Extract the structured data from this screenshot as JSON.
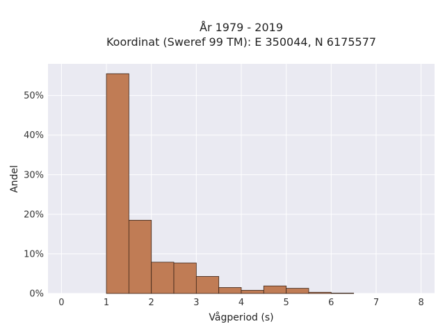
{
  "chart_data": {
    "type": "bar",
    "title_line1": "År 1979 - 2019",
    "title_line2": "Koordinat (Sweref 99 TM): E 350044, N 6175577",
    "xlabel": "Vågperiod (s)",
    "ylabel": "Andel",
    "xlim": [
      -0.3,
      8.3
    ],
    "ylim": [
      0,
      58
    ],
    "x_ticks": [
      0,
      1,
      2,
      3,
      4,
      5,
      6,
      7,
      8
    ],
    "y_ticks": [
      0,
      10,
      20,
      30,
      40,
      50
    ],
    "y_tick_labels": [
      "0%",
      "10%",
      "20%",
      "30%",
      "40%",
      "50%"
    ],
    "bin_width": 0.5,
    "bins": [
      {
        "x0": 1.0,
        "value": 55.5
      },
      {
        "x0": 1.5,
        "value": 18.5
      },
      {
        "x0": 2.0,
        "value": 7.9
      },
      {
        "x0": 2.5,
        "value": 7.7
      },
      {
        "x0": 3.0,
        "value": 4.3
      },
      {
        "x0": 3.5,
        "value": 1.5
      },
      {
        "x0": 4.0,
        "value": 0.8
      },
      {
        "x0": 4.5,
        "value": 1.9
      },
      {
        "x0": 5.0,
        "value": 1.3
      },
      {
        "x0": 5.5,
        "value": 0.3
      },
      {
        "x0": 6.0,
        "value": 0.1
      }
    ],
    "grid": true,
    "colors": {
      "bar_fill": "#c07c55",
      "bar_stroke": "#3a2418",
      "plot_bg": "#eaeaf2",
      "grid": "#ffffff"
    }
  }
}
